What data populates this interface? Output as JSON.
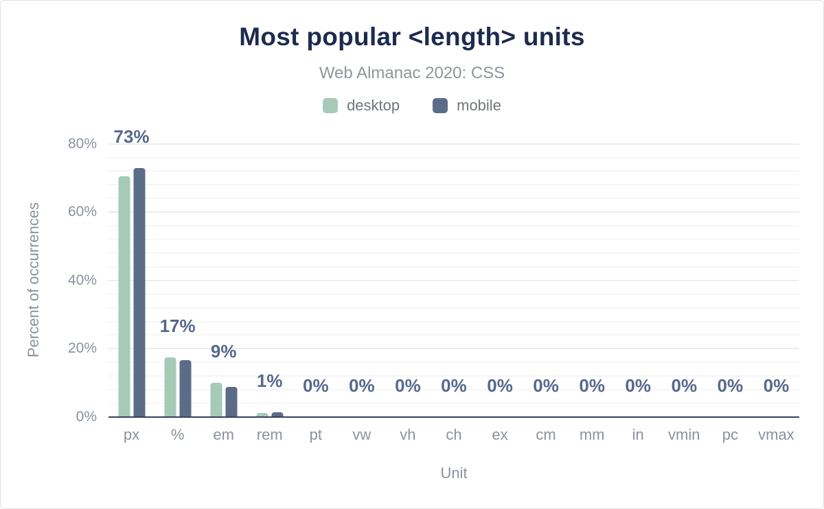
{
  "title": "Most popular <length> units",
  "subtitle": "Web Almanac 2020: CSS",
  "legend": {
    "items": [
      {
        "label": "desktop",
        "color": "#a6cab7"
      },
      {
        "label": "mobile",
        "color": "#5b6c88"
      }
    ]
  },
  "chart_data": {
    "type": "bar",
    "title": "Most popular <length> units",
    "subtitle": "Web Almanac 2020: CSS",
    "categories": [
      "px",
      "%",
      "em",
      "rem",
      "pt",
      "vw",
      "vh",
      "ch",
      "ex",
      "cm",
      "mm",
      "in",
      "vmin",
      "pc",
      "vmax"
    ],
    "series": [
      {
        "name": "desktop",
        "color": "#a6cab7",
        "values": [
          70.5,
          17.5,
          10.0,
          1.2,
          0,
          0,
          0,
          0,
          0,
          0,
          0,
          0,
          0,
          0,
          0
        ]
      },
      {
        "name": "mobile",
        "color": "#5b6c88",
        "values": [
          72.8,
          16.7,
          8.8,
          1.4,
          0,
          0,
          0,
          0,
          0,
          0,
          0,
          0,
          0,
          0,
          0
        ]
      }
    ],
    "bar_labels": [
      "73%",
      "17%",
      "9%",
      "1%",
      "0%",
      "0%",
      "0%",
      "0%",
      "0%",
      "0%",
      "0%",
      "0%",
      "0%",
      "0%",
      "0%"
    ],
    "xlabel": "Unit",
    "ylabel": "Percent of occurrences",
    "ylim": [
      0,
      80
    ],
    "yticks": [
      {
        "value": 0,
        "label": "0%"
      },
      {
        "value": 20,
        "label": "20%"
      },
      {
        "value": 40,
        "label": "40%"
      },
      {
        "value": 60,
        "label": "60%"
      },
      {
        "value": 80,
        "label": "80%"
      }
    ],
    "grid": "horizontal, minor every 4%, major every 20%",
    "legend_position": "top"
  },
  "colors": {
    "title_text": "#1d2b4e",
    "subtitle_text": "#8f969c",
    "axis_text": "#8b929c",
    "legend_text": "#6f757c",
    "data_label_text": "#57698c",
    "baseline": "#36415a",
    "gridline_minor": "#f6f6f6",
    "gridline_major": "#ededed",
    "background": "#ffffff"
  }
}
